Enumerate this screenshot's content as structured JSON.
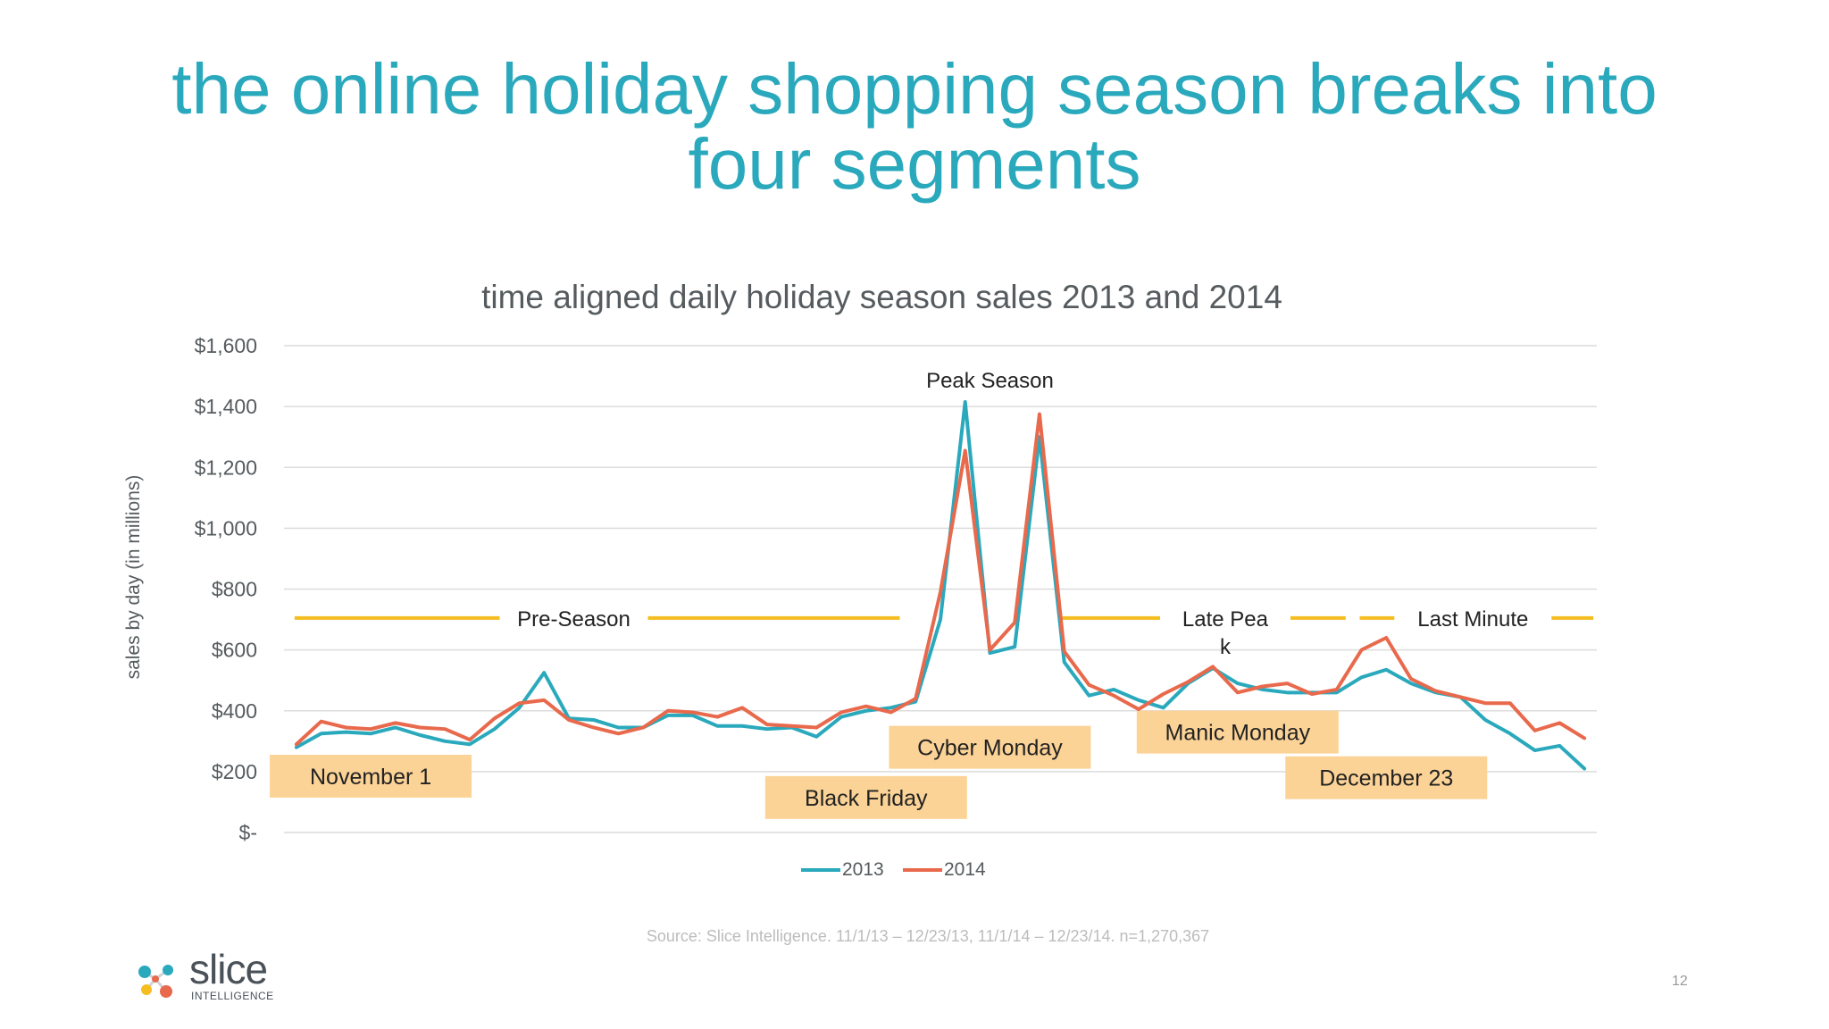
{
  "slide": {
    "title_line1": "the online holiday shopping season breaks into",
    "title_line2": "four segments",
    "source": "Source:  Slice Intelligence.  11/1/13 – 12/23/13, 11/1/14 – 12/23/14.  n=1,270,367",
    "page_number": "12",
    "logo": {
      "name": "slice",
      "tagline": "INTELLIGENCE"
    }
  },
  "chart_data": {
    "type": "line",
    "title": "time aligned daily holiday season sales 2013 and 2014",
    "xlabel": "",
    "ylabel": "sales by day (in millions)",
    "ylim": [
      0,
      1600
    ],
    "yticks": [
      0,
      200,
      400,
      600,
      800,
      1000,
      1200,
      1400,
      1600
    ],
    "ytick_labels": [
      "$-",
      "$200",
      "$400",
      "$600",
      "$800",
      "$1,000",
      "$1,200",
      "$1,400",
      "$1,600"
    ],
    "grid": true,
    "legend": "bottom",
    "x": [
      1,
      2,
      3,
      4,
      5,
      6,
      7,
      8,
      9,
      10,
      11,
      12,
      13,
      14,
      15,
      16,
      17,
      18,
      19,
      20,
      21,
      22,
      23,
      24,
      25,
      26,
      27,
      28,
      29,
      30,
      31,
      32,
      33,
      34,
      35,
      36,
      37,
      38,
      39,
      40,
      41,
      42,
      43,
      44,
      45,
      46,
      47,
      48,
      49,
      50,
      51,
      52,
      53
    ],
    "series": [
      {
        "name": "2013",
        "color": "#2aa9bd",
        "values": [
          280,
          325,
          330,
          325,
          345,
          320,
          300,
          290,
          340,
          410,
          525,
          375,
          370,
          345,
          345,
          385,
          385,
          350,
          350,
          340,
          345,
          315,
          380,
          400,
          410,
          430,
          700,
          1415,
          590,
          610,
          1300,
          560,
          450,
          470,
          435,
          410,
          490,
          540,
          490,
          470,
          460,
          460,
          460,
          510,
          535,
          490,
          460,
          445,
          370,
          325,
          270,
          285,
          210
        ]
      },
      {
        "name": "2014",
        "color": "#e8694c",
        "values": [
          290,
          365,
          345,
          340,
          360,
          345,
          340,
          305,
          375,
          425,
          435,
          370,
          345,
          325,
          345,
          400,
          395,
          380,
          410,
          355,
          350,
          345,
          395,
          415,
          395,
          440,
          790,
          1255,
          600,
          690,
          1375,
          595,
          485,
          450,
          405,
          455,
          495,
          545,
          460,
          480,
          490,
          455,
          470,
          600,
          640,
          505,
          465,
          445,
          425,
          425,
          335,
          360,
          310
        ]
      }
    ],
    "segments": [
      {
        "label": "Pre-Season",
        "y": 705,
        "x_start": 1,
        "x_end": 25
      },
      {
        "label": "Peak Season",
        "y": 1485,
        "x_start": 27,
        "x_end": 31
      },
      {
        "label": "Late Pea k",
        "y": 705,
        "x_start": 32,
        "x_end": 43
      },
      {
        "label": "Last Minute",
        "y": 705,
        "x_start": 44,
        "x_end": 53
      }
    ],
    "annotations": [
      {
        "label": "November 1",
        "x": 4,
        "y": 185
      },
      {
        "label": "Black Friday",
        "x": 24,
        "y": 115
      },
      {
        "label": "Cyber Monday",
        "x": 29,
        "y": 280
      },
      {
        "label": "Manic Monday",
        "x": 39,
        "y": 330
      },
      {
        "label": "December 23",
        "x": 45,
        "y": 180
      }
    ],
    "segment_line_color": "#f5bd1f",
    "annotation_fill": "#fcd397"
  }
}
